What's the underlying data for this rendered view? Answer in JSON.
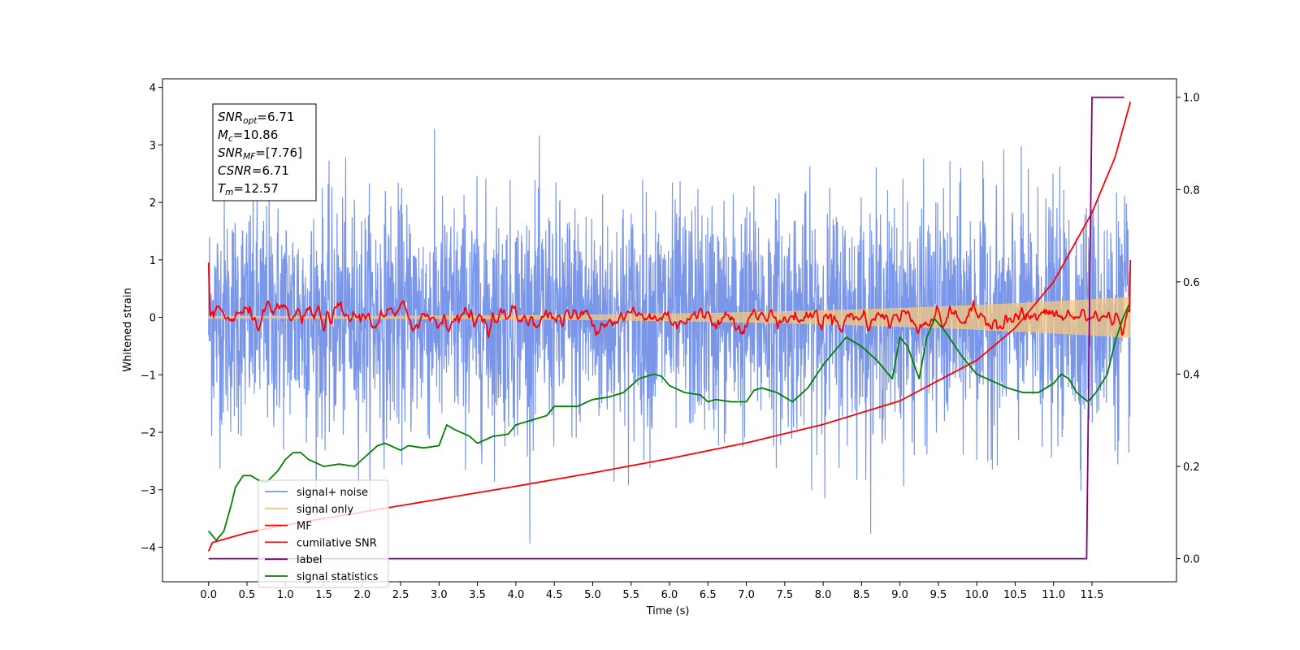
{
  "chart_data": {
    "type": "line",
    "xlabel": "Time (s)",
    "ylabel": "Whitened strain",
    "xlim": [
      -0.6,
      12.6
    ],
    "ylim": [
      -4.6,
      4.15
    ],
    "ylim_right": [
      -0.05,
      1.04
    ],
    "xticks": [
      0.0,
      0.5,
      1.0,
      1.5,
      2.0,
      2.5,
      3.0,
      3.5,
      4.0,
      4.5,
      5.0,
      5.5,
      6.0,
      6.5,
      7.0,
      7.5,
      8.0,
      8.5,
      9.0,
      9.5,
      10.0,
      10.5,
      11.0,
      11.5
    ],
    "xtick_labels": [
      "0.0",
      "0.5",
      "1.0",
      "1.5",
      "2.0",
      "2.5",
      "3.0",
      "3.5",
      "4.0",
      "4.5",
      "5.0",
      "5.5",
      "6.0",
      "6.5",
      "7.0",
      "7.5",
      "8.0",
      "8.5",
      "9.0",
      "9.5",
      "10.0",
      "10.5",
      "11.0",
      "11.5"
    ],
    "yticks": [
      -4,
      -3,
      -2,
      -1,
      0,
      1,
      2,
      3,
      4
    ],
    "ytick_labels": [
      "−4",
      "−3",
      "−2",
      "−1",
      "0",
      "1",
      "2",
      "3",
      "4"
    ],
    "yticks_right": [
      0.0,
      0.2,
      0.4,
      0.6,
      0.8,
      1.0
    ],
    "ytick_labels_right": [
      "0.0",
      "0.2",
      "0.4",
      "0.6",
      "0.8",
      "1.0"
    ],
    "legend_position": "bottom-left",
    "grid": false,
    "series": [
      {
        "name": "signal+ noise",
        "axis": "left",
        "color": "#7a96e8",
        "x_range": [
          0.0,
          12.0
        ],
        "mean": 0.0,
        "std": 1.0,
        "min": -3.93,
        "max": 3.73,
        "n_points": 3000
      },
      {
        "name": "signal only",
        "axis": "left",
        "color": "#f5c77e",
        "x_range": [
          0.0,
          12.0
        ],
        "envelope_start": 0.02,
        "envelope_end": 0.35
      },
      {
        "name": "MF",
        "axis": "left",
        "color": "#ff0000",
        "x_range": [
          0.0,
          12.0
        ],
        "start": 0.95,
        "end": 1.0,
        "std": 0.08,
        "n_points": 900
      },
      {
        "name": "cumilative SNR",
        "axis": "right",
        "color": "#ff0000",
        "x": [
          0.0,
          0.05,
          0.5,
          1.0,
          2.0,
          3.0,
          4.0,
          5.0,
          6.0,
          7.0,
          8.0,
          9.0,
          10.0,
          10.5,
          11.0,
          11.5,
          11.8,
          12.0
        ],
        "y": [
          0.016,
          0.035,
          0.056,
          0.073,
          0.101,
          0.129,
          0.157,
          0.186,
          0.217,
          0.251,
          0.291,
          0.342,
          0.43,
          0.5,
          0.6,
          0.75,
          0.87,
          0.99
        ]
      },
      {
        "name": "label",
        "axis": "right",
        "color": "#800080",
        "x": [
          0.0,
          11.43,
          11.5,
          11.92
        ],
        "y": [
          0.0,
          0.0,
          1.0,
          1.0
        ]
      },
      {
        "name": "signal statistics",
        "axis": "right",
        "color": "#008000",
        "x": [
          0.0,
          0.1,
          0.2,
          0.3,
          0.35,
          0.45,
          0.55,
          0.65,
          0.75,
          0.9,
          1.0,
          1.1,
          1.2,
          1.3,
          1.5,
          1.7,
          1.9,
          2.0,
          2.1,
          2.2,
          2.3,
          2.5,
          2.6,
          2.8,
          3.0,
          3.1,
          3.2,
          3.4,
          3.5,
          3.7,
          3.9,
          4.0,
          4.2,
          4.4,
          4.5,
          4.6,
          4.8,
          5.0,
          5.2,
          5.4,
          5.6,
          5.8,
          5.9,
          6.0,
          6.2,
          6.4,
          6.5,
          6.6,
          6.8,
          7.0,
          7.1,
          7.2,
          7.4,
          7.6,
          7.8,
          8.0,
          8.1,
          8.3,
          8.5,
          8.7,
          8.9,
          9.0,
          9.1,
          9.25,
          9.35,
          9.45,
          9.6,
          9.8,
          10.0,
          10.2,
          10.4,
          10.6,
          10.8,
          11.0,
          11.1,
          11.2,
          11.3,
          11.45,
          11.55,
          11.7,
          11.8,
          11.9,
          11.98
        ],
        "y": [
          0.06,
          0.04,
          0.06,
          0.12,
          0.155,
          0.18,
          0.18,
          0.17,
          0.165,
          0.19,
          0.215,
          0.23,
          0.23,
          0.215,
          0.2,
          0.205,
          0.2,
          0.215,
          0.23,
          0.245,
          0.25,
          0.235,
          0.245,
          0.24,
          0.245,
          0.29,
          0.28,
          0.265,
          0.25,
          0.265,
          0.27,
          0.29,
          0.3,
          0.31,
          0.33,
          0.33,
          0.33,
          0.345,
          0.35,
          0.36,
          0.39,
          0.4,
          0.395,
          0.375,
          0.36,
          0.355,
          0.34,
          0.345,
          0.34,
          0.34,
          0.365,
          0.37,
          0.36,
          0.34,
          0.37,
          0.42,
          0.44,
          0.48,
          0.46,
          0.43,
          0.39,
          0.48,
          0.46,
          0.39,
          0.48,
          0.52,
          0.49,
          0.44,
          0.4,
          0.385,
          0.37,
          0.36,
          0.36,
          0.38,
          0.4,
          0.39,
          0.36,
          0.34,
          0.36,
          0.4,
          0.47,
          0.52,
          0.55
        ]
      }
    ]
  },
  "info_box": [
    {
      "base": "SNR",
      "sub": "opt",
      "value": "=6.71"
    },
    {
      "base": "M",
      "sub": "c",
      "value": "=10.86"
    },
    {
      "base": "SNR",
      "sub": "MF",
      "value": "=[7.76]"
    },
    {
      "base": "CSNR",
      "sub": "",
      "value": "=6.71"
    },
    {
      "base": "T",
      "sub": "m",
      "value": "=12.57"
    }
  ]
}
